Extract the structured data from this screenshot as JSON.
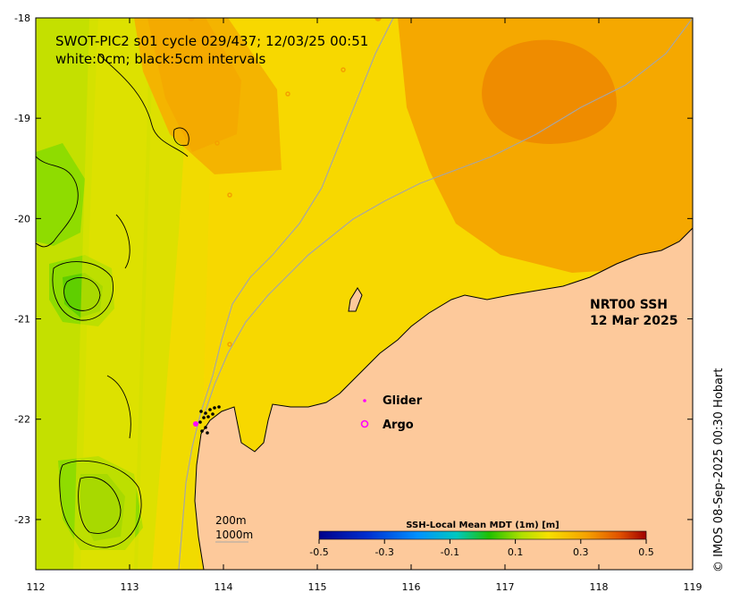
{
  "title": {
    "line1": "SWOT-PIC2 s01 cycle 029/437; 12/03/25 00:51",
    "line2": "white:0cm; black:5cm intervals"
  },
  "product": {
    "name": "NRT00 SSH",
    "date": "12 Mar 2025"
  },
  "legend": {
    "glider_label": "Glider",
    "argo_label": "Argo"
  },
  "contours": {
    "label_200": "200m",
    "label_1000": "1000m"
  },
  "colorbar": {
    "title": "SSH-Local Mean MDT (1m) [m]",
    "ticks": [
      "-0.5",
      "-0.3",
      "-0.1",
      "0.1",
      "0.3",
      "0.5"
    ]
  },
  "axes": {
    "x_ticks": [
      "112",
      "113",
      "114",
      "115",
      "116",
      "117",
      "118",
      "119"
    ],
    "y_ticks": [
      "-18",
      "-19",
      "-20",
      "-21",
      "-22",
      "-23"
    ]
  },
  "copyright": "© IMOS 08-Sep-2025 00:30 Hobart",
  "colors": {
    "land": "#fdc99b",
    "sea_base": "#f7d800",
    "eddy_orange": "#f5a800",
    "eddy_core": "#ef8c00",
    "green": "#7ed900",
    "glider": "#ff00ff",
    "argo": "#ff00ff"
  }
}
